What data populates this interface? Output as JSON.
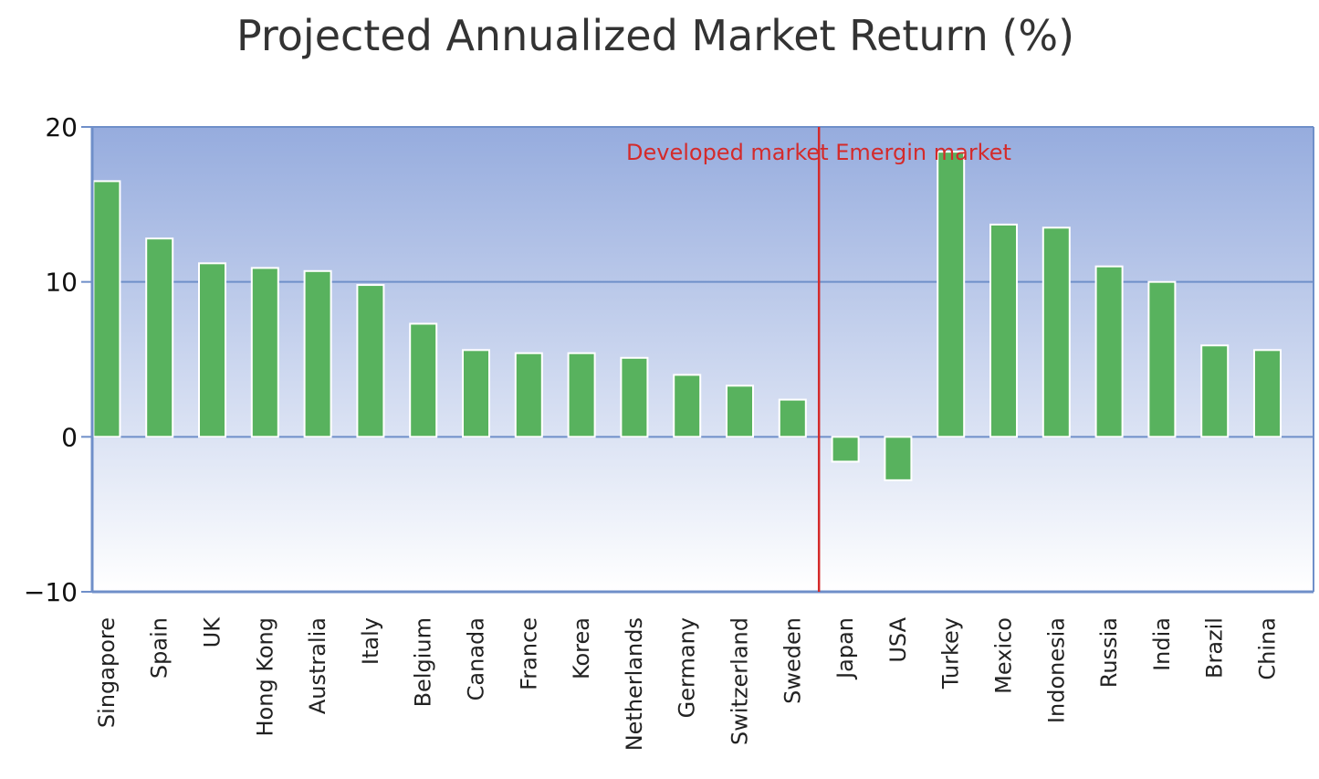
{
  "chart_data": {
    "type": "bar",
    "title": "Projected Annualized Market Return (%)",
    "xlabel": "",
    "ylabel": "",
    "ylim": [
      -10,
      20
    ],
    "yticks": [
      20,
      10,
      0,
      -10
    ],
    "ytick_labels": [
      "20",
      "10",
      "0",
      "−10"
    ],
    "grid": true,
    "categories": [
      "Singapore",
      "Spain",
      "UK",
      "Hong Kong",
      "Australia",
      "Italy",
      "Belgium",
      "Canada",
      "France",
      "Korea",
      "Netherlands",
      "Germany",
      "Switzerland",
      "Sweden",
      "Japan",
      "USA",
      "Turkey",
      "Mexico",
      "Indonesia",
      "Russia",
      "India",
      "Brazil",
      "China"
    ],
    "values": [
      16.5,
      12.8,
      11.2,
      10.9,
      10.7,
      9.8,
      7.3,
      5.6,
      5.4,
      5.4,
      5.1,
      4.0,
      3.3,
      2.4,
      -1.6,
      -2.8,
      18.4,
      13.7,
      13.5,
      11.0,
      10.0,
      5.9,
      5.6
    ],
    "divider_after": "Sweden",
    "annotation": "Developed market Emergin market",
    "colors": {
      "bar": "#58b25e",
      "bar_stroke": "#ffffff",
      "axis": "#6f8fc9",
      "grid": "#6f8fc9",
      "divider": "#d42a2a",
      "annotation": "#d42a2a",
      "bg_top": "#96acde",
      "bg_bottom": "#ffffff"
    }
  }
}
